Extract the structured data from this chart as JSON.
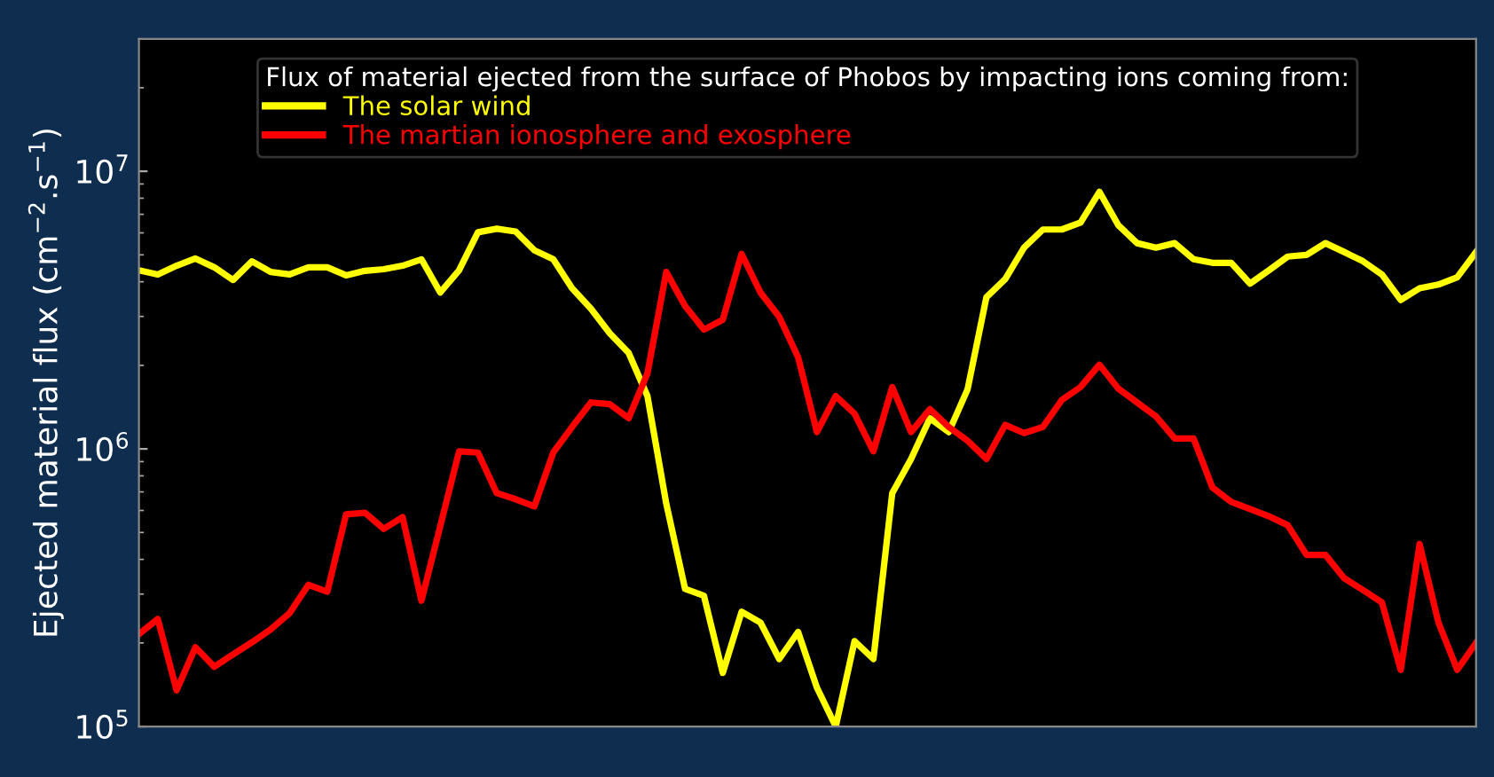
{
  "chart_data": {
    "type": "line",
    "ylabel": "Ejected material flux (cm$^{−2}$.s$^{−1}$)",
    "legend_title": "Flux of material ejected from the surface of Phobos by impacting ions coming from:",
    "categories": [
      null,
      null,
      null,
      null,
      null,
      null,
      null,
      null,
      null,
      null,
      null,
      null,
      null,
      null,
      null,
      null,
      null,
      null,
      null,
      null,
      null,
      null,
      null,
      null,
      null,
      null,
      null,
      null,
      null,
      null,
      null,
      null,
      null,
      null,
      null,
      null,
      null,
      null,
      null,
      null,
      null,
      null,
      null,
      null,
      null,
      null,
      null,
      null,
      null,
      null,
      null,
      null,
      null,
      null,
      null,
      null,
      null,
      null,
      null,
      null,
      null,
      null,
      null,
      null,
      null,
      null,
      null,
      null,
      null,
      null,
      null,
      null
    ],
    "series": [
      {
        "name": "The solar wind",
        "color": "#ffff00",
        "values": [
          4400000.0,
          4250000.0,
          4570000.0,
          4850000.0,
          4510000.0,
          4060000.0,
          4740000.0,
          4340000.0,
          4250000.0,
          4510000.0,
          4510000.0,
          4220000.0,
          4380000.0,
          4440000.0,
          4570000.0,
          4820000.0,
          3660000.0,
          4400000.0,
          6030000.0,
          6210000.0,
          6070000.0,
          5190000.0,
          4820000.0,
          3790000.0,
          3200000.0,
          2610000.0,
          2220000.0,
          1550000.0,
          635000.0,
          313000.0,
          296000.0,
          156000.0,
          259000.0,
          237000.0,
          175000.0,
          219000.0,
          138000.0,
          100000.0,
          203000.0,
          175000.0,
          693000.0,
          920000.0,
          1290000.0,
          1150000.0,
          1640000.0,
          3520000.0,
          4090000.0,
          5310000.0,
          6170000.0,
          6170000.0,
          6540000.0,
          8430000.0,
          6400000.0,
          5510000.0,
          5310000.0,
          5510000.0,
          4820000.0,
          4680000.0,
          4680000.0,
          3940000.0,
          4400000.0,
          4930000.0,
          5000000.0,
          5510000.0,
          5120000.0,
          4740000.0,
          4250000.0,
          3440000.0,
          3790000.0,
          3910000.0,
          4150000.0,
          5120000.0
        ]
      },
      {
        "name": "The martian ionosphere and exosphere",
        "color": "#ff0000",
        "values": [
          215000.0,
          244000.0,
          135000.0,
          193000.0,
          164000.0,
          182000.0,
          201000.0,
          224000.0,
          256000.0,
          324000.0,
          306000.0,
          581000.0,
          589000.0,
          515000.0,
          568000.0,
          284000.0,
          527000.0,
          980000.0,
          970000.0,
          693000.0,
          659000.0,
          621000.0,
          970000.0,
          1200000.0,
          1470000.0,
          1450000.0,
          1290000.0,
          1870000.0,
          4340000.0,
          3270000.0,
          2690000.0,
          2920000.0,
          5040000.0,
          3660000.0,
          2990000.0,
          2140000.0,
          1150000.0,
          1550000.0,
          1340000.0,
          980000.0,
          1670000.0,
          1150000.0,
          1390000.0,
          1200000.0,
          1070000.0,
          920000.0,
          1220000.0,
          1140000.0,
          1200000.0,
          1500000.0,
          1670000.0,
          2010000.0,
          1650000.0,
          1470000.0,
          1310000.0,
          1090000.0,
          1090000.0,
          726000.0,
          644000.0,
          607000.0,
          572000.0,
          531000.0,
          415000.0,
          415000.0,
          342000.0,
          310000.0,
          280000.0,
          160000.0,
          454000.0,
          237000.0,
          160000.0,
          200000.0
        ]
      }
    ],
    "log": "y",
    "ylim": [
      100000,
      30000000
    ],
    "yticks": [
      {
        "value": 100000,
        "label": "10$^{5}$"
      },
      {
        "value": 1000000,
        "label": "10$^{6}$"
      },
      {
        "value": 10000000,
        "label": "10$^{7}$"
      }
    ],
    "tick_labels": "y",
    "legend": "top",
    "grid": false,
    "marker": "none",
    "line_style": "solid"
  }
}
